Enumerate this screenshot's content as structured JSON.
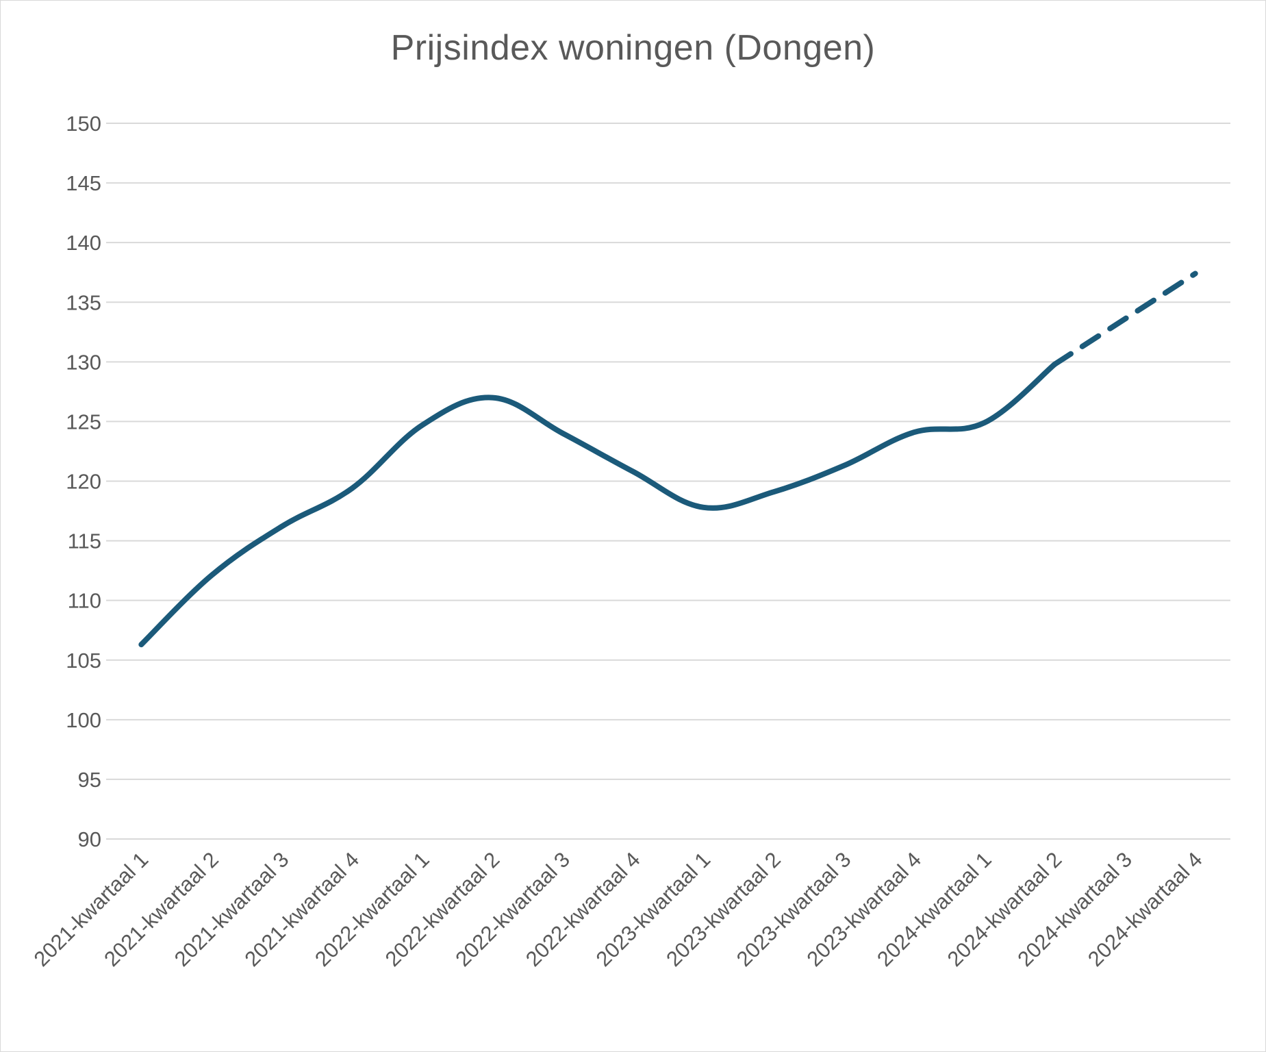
{
  "chart_data": {
    "type": "line",
    "title": "Prijsindex woningen (Dongen)",
    "xlabel": "",
    "ylabel": "",
    "ylim": [
      90,
      150
    ],
    "yticks": [
      90,
      95,
      100,
      105,
      110,
      115,
      120,
      125,
      130,
      135,
      140,
      145,
      150
    ],
    "grid": true,
    "legend": "none",
    "categories": [
      "2021-kwartaal 1",
      "2021-kwartaal 2",
      "2021-kwartaal 3",
      "2021-kwartaal 4",
      "2022-kwartaal 1",
      "2022-kwartaal 2",
      "2022-kwartaal 3",
      "2022-kwartaal 4",
      "2023-kwartaal 1",
      "2023-kwartaal 2",
      "2023-kwartaal 3",
      "2023-kwartaal 4",
      "2024-kwartaal 1",
      "2024-kwartaal 2",
      "2024-kwartaal 3",
      "2024-kwartaal 4"
    ],
    "series": [
      {
        "style": "solid",
        "color": "#1b5a7a",
        "values": [
          106.3,
          112.1,
          116.2,
          119.4,
          124.7,
          127.0,
          124.0,
          120.8,
          117.8,
          119.1,
          121.3,
          124.1,
          124.9,
          129.8,
          null,
          null
        ]
      },
      {
        "style": "dashed",
        "color": "#1b5a7a",
        "values": [
          null,
          null,
          null,
          null,
          null,
          null,
          null,
          null,
          null,
          null,
          null,
          null,
          null,
          129.8,
          133.6,
          137.4
        ]
      }
    ]
  }
}
